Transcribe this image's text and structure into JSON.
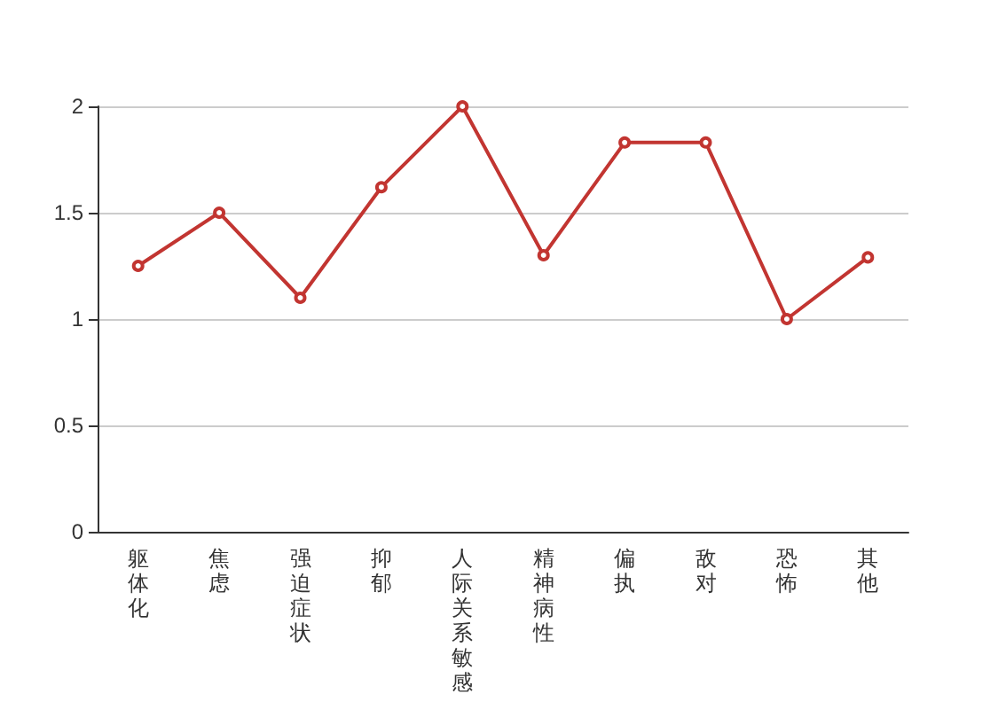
{
  "chart_data": {
    "type": "line",
    "categories": [
      "躯体化",
      "焦虑",
      "强迫症状",
      "抑郁",
      "人际关系敏感",
      "精神病性",
      "偏执",
      "敌对",
      "恐怖",
      "其他"
    ],
    "series": [
      {
        "color": "#c23531",
        "values": [
          1.25,
          1.5,
          1.1,
          1.62,
          2.0,
          1.3,
          1.83,
          1.83,
          1.0,
          1.29
        ]
      }
    ],
    "ylim": [
      0,
      2
    ],
    "yticks": [
      0,
      0.5,
      1,
      1.5,
      2
    ],
    "grid": "y",
    "marker": "circle",
    "line_style": "solid",
    "legend": false
  }
}
